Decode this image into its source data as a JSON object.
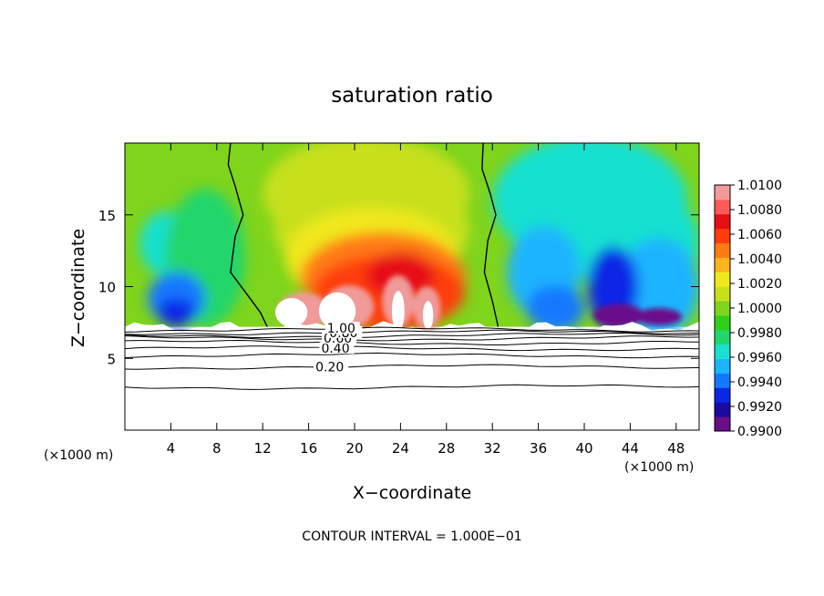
{
  "chart_data": {
    "type": "heatmap",
    "title": "saturation ratio",
    "xlabel": "X−coordinate",
    "ylabel": "Z−coordinate",
    "x_unit_left": "(×1000 m)",
    "x_unit_right": "(×1000 m)",
    "footer": "CONTOUR INTERVAL = 1.000E−01",
    "xlim": [
      0,
      50
    ],
    "ylim": [
      0,
      20
    ],
    "x_ticks": [
      4,
      8,
      12,
      16,
      20,
      24,
      28,
      32,
      36,
      40,
      44,
      48
    ],
    "y_ticks": [
      5,
      10,
      15
    ],
    "terrain_top": 7.2,
    "colorbar": {
      "ticks": [
        "1.0100",
        "1.0080",
        "1.0060",
        "1.0040",
        "1.0020",
        "1.0000",
        "0.9980",
        "0.9960",
        "0.9940",
        "0.9920",
        "0.9900"
      ],
      "min": 0.99,
      "max": 1.01,
      "colors": [
        "#6a0d8a",
        "#1a0aa0",
        "#0a28e6",
        "#1478ff",
        "#1ab4ff",
        "#19e0d0",
        "#22d66c",
        "#31cf19",
        "#7fd41c",
        "#c8e01c",
        "#f0e81e",
        "#ffb41e",
        "#ff7a12",
        "#ff3c0c",
        "#e60f14",
        "#ff5a5a",
        "#f09a9a"
      ]
    },
    "contours": [
      {
        "label": "0.20",
        "level": 0.2,
        "z": 4.4
      },
      {
        "label": "0.40",
        "level": 0.4,
        "z": 5.7
      },
      {
        "label": "0.60",
        "level": 0.6,
        "z": 6.4
      },
      {
        "label": "0.80",
        "level": 0.8,
        "z": 6.8
      },
      {
        "label": "1.00",
        "level": 1.0,
        "z": 7.1
      }
    ],
    "saturation_boundaries": [
      {
        "name": "left",
        "x": [
          9.2,
          9.0,
          9.6,
          10.3,
          9.6,
          9.2,
          10.6,
          11.8,
          12.4
        ],
        "z": [
          20,
          18.5,
          17,
          15,
          13.5,
          11,
          9.5,
          8.2,
          7.2
        ]
      },
      {
        "name": "right",
        "x": [
          31.2,
          31.1,
          31.8,
          32.3,
          31.6,
          31.3,
          32.0,
          32.5
        ],
        "z": [
          20,
          18.2,
          16.5,
          15,
          13.2,
          11,
          9.0,
          7.2
        ]
      }
    ]
  }
}
